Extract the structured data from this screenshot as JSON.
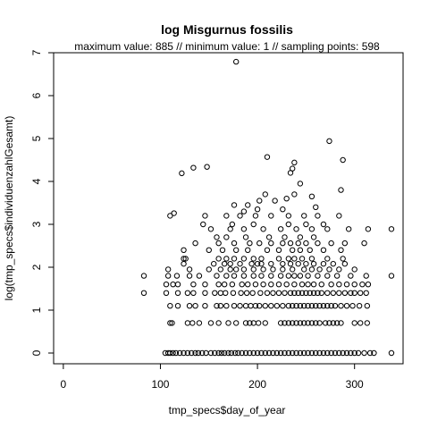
{
  "chart_data": {
    "type": "scatter",
    "title": "log Misgurnus fossilis",
    "subtitle": "maximum value: 885  //  minimum value: 1  // sampling points: 598",
    "xlabel": "tmp_specs$day_of_year",
    "ylabel": "log(tmp_specs$individuenzahlGesamt)",
    "xlim": [
      -10,
      350
    ],
    "ylim": [
      -0.25,
      7.0
    ],
    "xticks": [
      0,
      100,
      200,
      300
    ],
    "yticks": [
      0,
      1,
      2,
      3,
      4,
      5,
      6,
      7
    ],
    "grid": false,
    "legend": "none",
    "marker": "open-circle",
    "point_color": "#000000",
    "points": [
      [
        83,
        1.4
      ],
      [
        83,
        1.8
      ],
      [
        105,
        0
      ],
      [
        108,
        0
      ],
      [
        110,
        0
      ],
      [
        113,
        0
      ],
      [
        116,
        0
      ],
      [
        120,
        0
      ],
      [
        124,
        0
      ],
      [
        128,
        0
      ],
      [
        132,
        0
      ],
      [
        136,
        0
      ],
      [
        139,
        0
      ],
      [
        143,
        0
      ],
      [
        147,
        0
      ],
      [
        152,
        0
      ],
      [
        156,
        0
      ],
      [
        160,
        0
      ],
      [
        163,
        0
      ],
      [
        166,
        0
      ],
      [
        170,
        0
      ],
      [
        173,
        0
      ],
      [
        177,
        0
      ],
      [
        180,
        0
      ],
      [
        184,
        0
      ],
      [
        188,
        0
      ],
      [
        192,
        0
      ],
      [
        196,
        0
      ],
      [
        200,
        0
      ],
      [
        204,
        0
      ],
      [
        208,
        0
      ],
      [
        212,
        0
      ],
      [
        216,
        0
      ],
      [
        220,
        0
      ],
      [
        224,
        0
      ],
      [
        228,
        0
      ],
      [
        232,
        0
      ],
      [
        236,
        0
      ],
      [
        240,
        0
      ],
      [
        244,
        0
      ],
      [
        248,
        0
      ],
      [
        252,
        0
      ],
      [
        256,
        0
      ],
      [
        260,
        0
      ],
      [
        264,
        0
      ],
      [
        268,
        0
      ],
      [
        272,
        0
      ],
      [
        276,
        0
      ],
      [
        280,
        0
      ],
      [
        284,
        0
      ],
      [
        288,
        0
      ],
      [
        292,
        0
      ],
      [
        296,
        0
      ],
      [
        300,
        0
      ],
      [
        304,
        0
      ],
      [
        310,
        0
      ],
      [
        316,
        0
      ],
      [
        320,
        0
      ],
      [
        338,
        0
      ],
      [
        110,
        0.7
      ],
      [
        112,
        0.7
      ],
      [
        128,
        0.7
      ],
      [
        133,
        0.7
      ],
      [
        140,
        0.7
      ],
      [
        152,
        0.7
      ],
      [
        160,
        0.7
      ],
      [
        170,
        0.7
      ],
      [
        178,
        0.7
      ],
      [
        188,
        0.7
      ],
      [
        192,
        0.7
      ],
      [
        196,
        0.7
      ],
      [
        201,
        0.7
      ],
      [
        208,
        0.7
      ],
      [
        224,
        0.7
      ],
      [
        228,
        0.7
      ],
      [
        232,
        0.7
      ],
      [
        236,
        0.7
      ],
      [
        240,
        0.7
      ],
      [
        244,
        0.7
      ],
      [
        248,
        0.7
      ],
      [
        252,
        0.7
      ],
      [
        256,
        0.7
      ],
      [
        260,
        0.7
      ],
      [
        264,
        0.7
      ],
      [
        270,
        0.7
      ],
      [
        274,
        0.7
      ],
      [
        278,
        0.7
      ],
      [
        282,
        0.7
      ],
      [
        286,
        0.7
      ],
      [
        300,
        0.7
      ],
      [
        306,
        0.7
      ],
      [
        313,
        0.7
      ],
      [
        110,
        1.1
      ],
      [
        118,
        1.1
      ],
      [
        130,
        1.1
      ],
      [
        136,
        1.1
      ],
      [
        146,
        1.1
      ],
      [
        158,
        1.1
      ],
      [
        162,
        1.1
      ],
      [
        168,
        1.1
      ],
      [
        176,
        1.1
      ],
      [
        182,
        1.1
      ],
      [
        188,
        1.1
      ],
      [
        193,
        1.1
      ],
      [
        198,
        1.1
      ],
      [
        202,
        1.1
      ],
      [
        208,
        1.1
      ],
      [
        214,
        1.1
      ],
      [
        220,
        1.1
      ],
      [
        226,
        1.1
      ],
      [
        232,
        1.1
      ],
      [
        236,
        1.1
      ],
      [
        240,
        1.1
      ],
      [
        244,
        1.1
      ],
      [
        248,
        1.1
      ],
      [
        252,
        1.1
      ],
      [
        256,
        1.1
      ],
      [
        260,
        1.1
      ],
      [
        264,
        1.1
      ],
      [
        268,
        1.1
      ],
      [
        272,
        1.1
      ],
      [
        276,
        1.1
      ],
      [
        280,
        1.1
      ],
      [
        286,
        1.1
      ],
      [
        292,
        1.1
      ],
      [
        298,
        1.1
      ],
      [
        305,
        1.1
      ],
      [
        313,
        1.1
      ],
      [
        106,
        1.4
      ],
      [
        118,
        1.4
      ],
      [
        128,
        1.4
      ],
      [
        134,
        1.4
      ],
      [
        146,
        1.4
      ],
      [
        156,
        1.4
      ],
      [
        162,
        1.4
      ],
      [
        167,
        1.4
      ],
      [
        175,
        1.4
      ],
      [
        183,
        1.4
      ],
      [
        189,
        1.4
      ],
      [
        195,
        1.4
      ],
      [
        203,
        1.4
      ],
      [
        210,
        1.4
      ],
      [
        216,
        1.4
      ],
      [
        222,
        1.4
      ],
      [
        228,
        1.4
      ],
      [
        234,
        1.4
      ],
      [
        238,
        1.4
      ],
      [
        242,
        1.4
      ],
      [
        246,
        1.4
      ],
      [
        250,
        1.4
      ],
      [
        254,
        1.4
      ],
      [
        258,
        1.4
      ],
      [
        262,
        1.4
      ],
      [
        266,
        1.4
      ],
      [
        272,
        1.4
      ],
      [
        278,
        1.4
      ],
      [
        284,
        1.4
      ],
      [
        290,
        1.4
      ],
      [
        296,
        1.4
      ],
      [
        300,
        1.4
      ],
      [
        306,
        1.4
      ],
      [
        312,
        1.4
      ],
      [
        106,
        1.6
      ],
      [
        113,
        1.6
      ],
      [
        118,
        1.6
      ],
      [
        134,
        1.6
      ],
      [
        146,
        1.6
      ],
      [
        160,
        1.6
      ],
      [
        166,
        1.6
      ],
      [
        174,
        1.6
      ],
      [
        184,
        1.6
      ],
      [
        190,
        1.6
      ],
      [
        198,
        1.6
      ],
      [
        206,
        1.6
      ],
      [
        214,
        1.6
      ],
      [
        222,
        1.6
      ],
      [
        230,
        1.6
      ],
      [
        238,
        1.6
      ],
      [
        246,
        1.6
      ],
      [
        252,
        1.6
      ],
      [
        258,
        1.6
      ],
      [
        266,
        1.6
      ],
      [
        276,
        1.6
      ],
      [
        284,
        1.6
      ],
      [
        292,
        1.6
      ],
      [
        300,
        1.6
      ],
      [
        308,
        1.6
      ],
      [
        314,
        1.6
      ],
      [
        108,
        1.8
      ],
      [
        117,
        1.8
      ],
      [
        130,
        1.8
      ],
      [
        140,
        1.8
      ],
      [
        158,
        1.8
      ],
      [
        168,
        1.8
      ],
      [
        176,
        1.8
      ],
      [
        186,
        1.8
      ],
      [
        196,
        1.8
      ],
      [
        204,
        1.8
      ],
      [
        214,
        1.8
      ],
      [
        224,
        1.8
      ],
      [
        232,
        1.8
      ],
      [
        238,
        1.8
      ],
      [
        244,
        1.8
      ],
      [
        252,
        1.8
      ],
      [
        262,
        1.8
      ],
      [
        272,
        1.8
      ],
      [
        282,
        1.8
      ],
      [
        296,
        1.8
      ],
      [
        312,
        1.8
      ],
      [
        338,
        1.8
      ],
      [
        108,
        1.95
      ],
      [
        130,
        1.95
      ],
      [
        150,
        1.95
      ],
      [
        162,
        1.95
      ],
      [
        172,
        1.95
      ],
      [
        178,
        1.95
      ],
      [
        186,
        1.95
      ],
      [
        196,
        1.95
      ],
      [
        206,
        1.95
      ],
      [
        216,
        1.95
      ],
      [
        226,
        1.95
      ],
      [
        236,
        1.95
      ],
      [
        248,
        1.95
      ],
      [
        256,
        1.95
      ],
      [
        264,
        1.95
      ],
      [
        274,
        1.95
      ],
      [
        284,
        1.95
      ],
      [
        300,
        1.95
      ],
      [
        124,
        2.08
      ],
      [
        155,
        2.08
      ],
      [
        166,
        2.08
      ],
      [
        172,
        2.08
      ],
      [
        182,
        2.08
      ],
      [
        194,
        2.08
      ],
      [
        200,
        2.08
      ],
      [
        204,
        2.08
      ],
      [
        214,
        2.08
      ],
      [
        226,
        2.08
      ],
      [
        234,
        2.08
      ],
      [
        242,
        2.08
      ],
      [
        250,
        2.08
      ],
      [
        258,
        2.08
      ],
      [
        268,
        2.08
      ],
      [
        278,
        2.08
      ],
      [
        290,
        2.08
      ],
      [
        124,
        2.2
      ],
      [
        126,
        2.2
      ],
      [
        160,
        2.2
      ],
      [
        168,
        2.2
      ],
      [
        176,
        2.2
      ],
      [
        186,
        2.2
      ],
      [
        196,
        2.2
      ],
      [
        204,
        2.2
      ],
      [
        222,
        2.2
      ],
      [
        232,
        2.2
      ],
      [
        238,
        2.2
      ],
      [
        246,
        2.2
      ],
      [
        256,
        2.2
      ],
      [
        272,
        2.2
      ],
      [
        288,
        2.2
      ],
      [
        124,
        2.4
      ],
      [
        150,
        2.4
      ],
      [
        164,
        2.4
      ],
      [
        178,
        2.4
      ],
      [
        190,
        2.4
      ],
      [
        210,
        2.4
      ],
      [
        222,
        2.4
      ],
      [
        236,
        2.4
      ],
      [
        244,
        2.4
      ],
      [
        254,
        2.4
      ],
      [
        268,
        2.4
      ],
      [
        286,
        2.4
      ],
      [
        136,
        2.56
      ],
      [
        160,
        2.56
      ],
      [
        176,
        2.56
      ],
      [
        192,
        2.56
      ],
      [
        202,
        2.56
      ],
      [
        214,
        2.56
      ],
      [
        226,
        2.56
      ],
      [
        234,
        2.56
      ],
      [
        242,
        2.56
      ],
      [
        250,
        2.56
      ],
      [
        262,
        2.56
      ],
      [
        276,
        2.56
      ],
      [
        290,
        2.56
      ],
      [
        310,
        2.56
      ],
      [
        158,
        2.7
      ],
      [
        168,
        2.7
      ],
      [
        188,
        2.7
      ],
      [
        212,
        2.7
      ],
      [
        228,
        2.7
      ],
      [
        244,
        2.7
      ],
      [
        258,
        2.7
      ],
      [
        152,
        2.89
      ],
      [
        172,
        2.89
      ],
      [
        186,
        2.89
      ],
      [
        206,
        2.89
      ],
      [
        224,
        2.89
      ],
      [
        240,
        2.89
      ],
      [
        256,
        2.89
      ],
      [
        272,
        2.89
      ],
      [
        294,
        2.89
      ],
      [
        314,
        2.89
      ],
      [
        338,
        2.89
      ],
      [
        144,
        3.0
      ],
      [
        174,
        3.0
      ],
      [
        196,
        3.0
      ],
      [
        232,
        3.0
      ],
      [
        250,
        3.0
      ],
      [
        268,
        3.0
      ],
      [
        110,
        3.2
      ],
      [
        146,
        3.2
      ],
      [
        168,
        3.2
      ],
      [
        182,
        3.2
      ],
      [
        198,
        3.2
      ],
      [
        214,
        3.2
      ],
      [
        232,
        3.2
      ],
      [
        248,
        3.2
      ],
      [
        262,
        3.2
      ],
      [
        284,
        3.2
      ],
      [
        114,
        3.26
      ],
      [
        186,
        3.3
      ],
      [
        200,
        3.35
      ],
      [
        226,
        3.35
      ],
      [
        260,
        3.4
      ],
      [
        176,
        3.45
      ],
      [
        190,
        3.45
      ],
      [
        202,
        3.55
      ],
      [
        218,
        3.55
      ],
      [
        230,
        3.6
      ],
      [
        256,
        3.65
      ],
      [
        208,
        3.7
      ],
      [
        238,
        3.7
      ],
      [
        286,
        3.8
      ],
      [
        244,
        3.95
      ],
      [
        122,
        4.19
      ],
      [
        234,
        4.2
      ],
      [
        236,
        4.3
      ],
      [
        134,
        4.32
      ],
      [
        148,
        4.34
      ],
      [
        238,
        4.44
      ],
      [
        288,
        4.5
      ],
      [
        210,
        4.57
      ],
      [
        274,
        4.94
      ],
      [
        178,
        6.79
      ]
    ]
  }
}
